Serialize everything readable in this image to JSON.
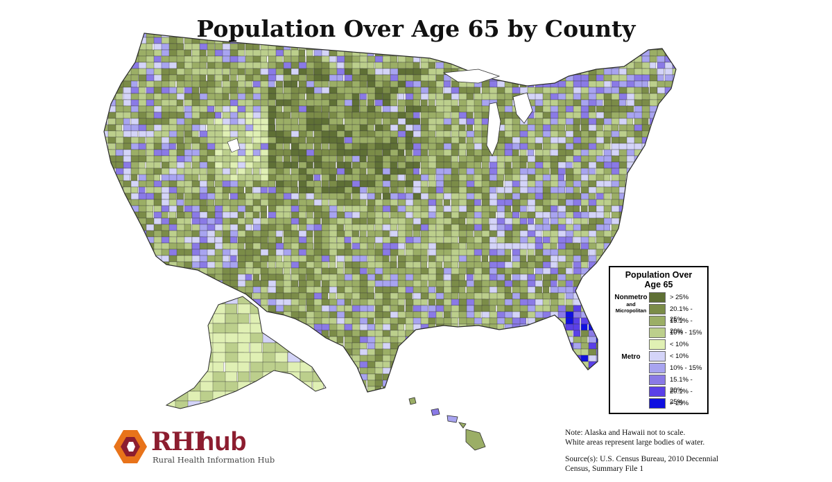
{
  "title": "Population Over Age 65 by County",
  "legend": {
    "title_line1": "Population Over",
    "title_line2": "Age 65",
    "groups": [
      {
        "name_line1": "Nonmetro",
        "name_line2": "and",
        "name_line3": "Micropolitan",
        "classes": [
          {
            "label": "> 25%",
            "color": "#5f7035"
          },
          {
            "label": "20.1% - 25%",
            "color": "#7b8c48"
          },
          {
            "label": "15.1% - 20%",
            "color": "#9bae66"
          },
          {
            "label": "10% - 15%",
            "color": "#bccf8c"
          },
          {
            "label": "< 10%",
            "color": "#e0f0b4"
          }
        ]
      },
      {
        "name_line1": "Metro",
        "classes": [
          {
            "label": "< 10%",
            "color": "#d4d4f8"
          },
          {
            "label": "10% - 15%",
            "color": "#a8a4f0"
          },
          {
            "label": "15.1% - 20%",
            "color": "#8a7ae6"
          },
          {
            "label": "20.1% - 25%",
            "color": "#5a40e8"
          },
          {
            "label": "> 25%",
            "color": "#1010e0"
          }
        ]
      }
    ]
  },
  "note": {
    "line1": "Note: Alaska and Hawaii not to scale.",
    "line2": "White areas represent large bodies of water."
  },
  "source": {
    "line1": "Source(s): U.S. Census Bureau, 2010 Decennial",
    "line2": "Census, Summary File 1"
  },
  "logo": {
    "rhi": "RHI",
    "hub": "hub",
    "subtitle": "Rural Health Information Hub",
    "colors": {
      "outer": "#e8731a",
      "inner": "#8c1d2f"
    }
  }
}
